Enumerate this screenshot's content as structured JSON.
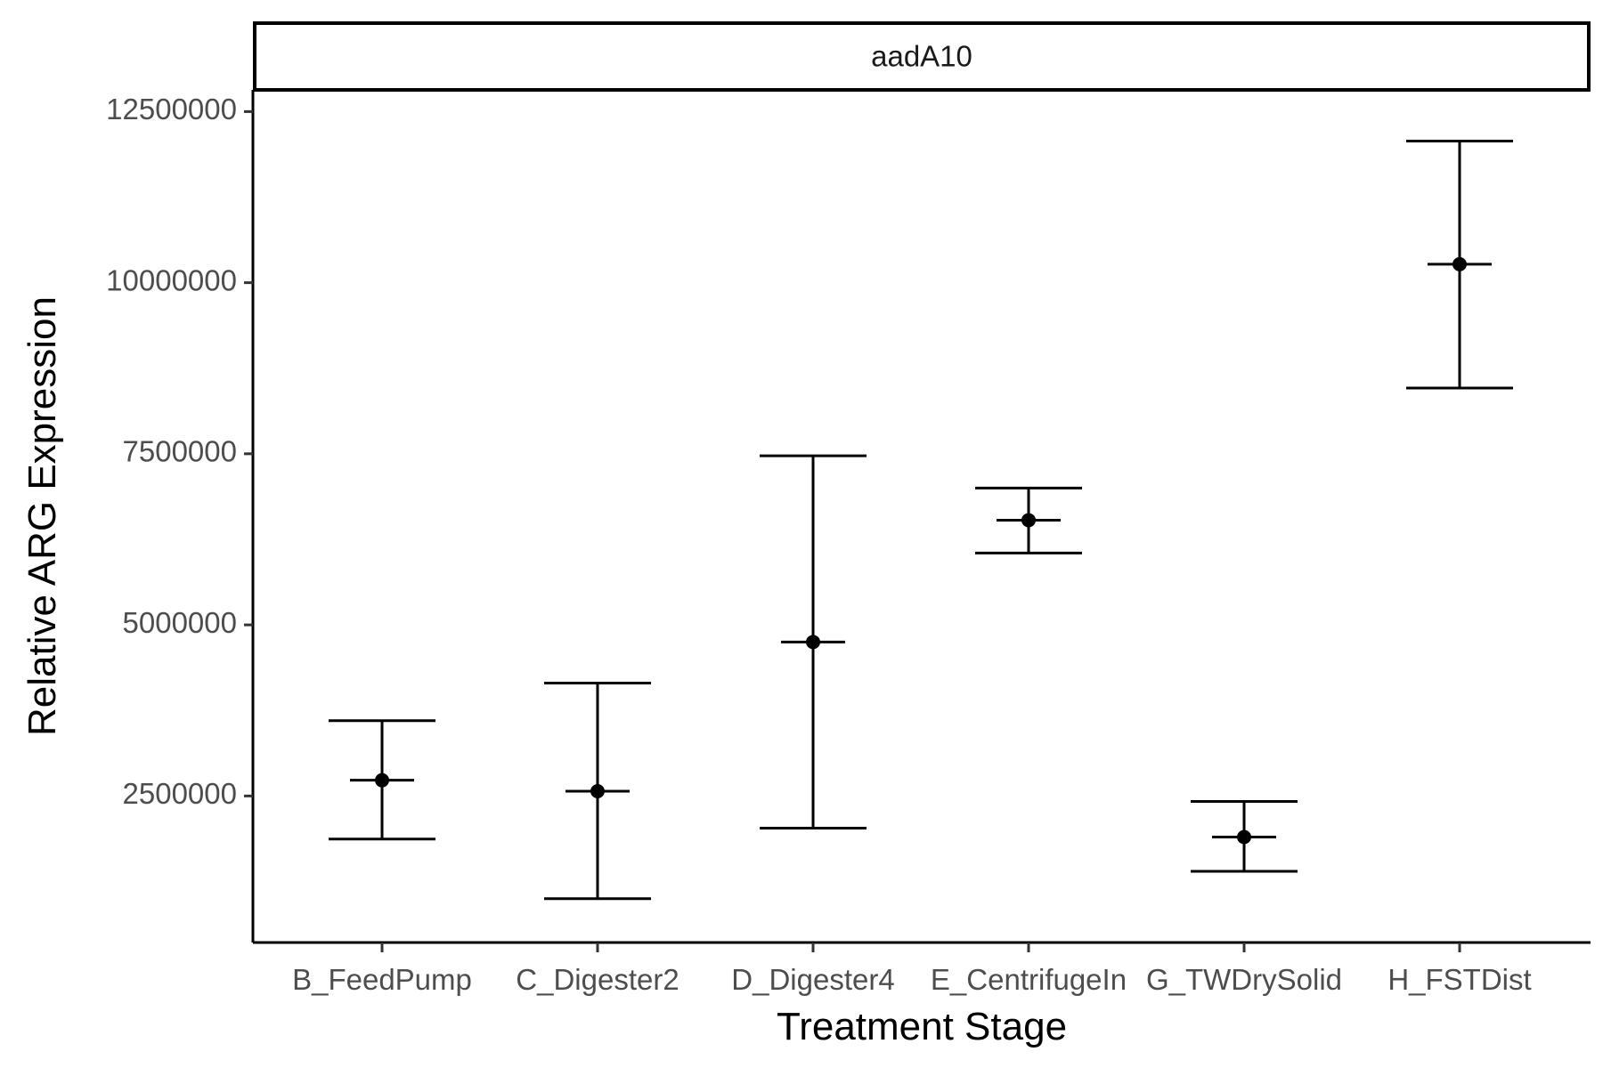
{
  "chart_data": {
    "type": "scatter",
    "panel_title": "aadA10",
    "xlabel": "Treatment Stage",
    "ylabel": "Relative ARG Expression",
    "categories": [
      "B_FeedPump",
      "C_Digester2",
      "D_Digester4",
      "E_CentrifugeIn",
      "G_TWDrySolid",
      "H_FSTDist"
    ],
    "y_ticks": [
      2500000,
      5000000,
      7500000,
      10000000,
      12500000
    ],
    "y_tick_labels": [
      "2500000",
      "5000000",
      "7500000",
      "10000000",
      "12500000"
    ],
    "ylim": [
      450000,
      12700000
    ],
    "points": [
      {
        "category": "B_FeedPump",
        "mean": 2730000,
        "lower": 1870000,
        "upper": 3600000
      },
      {
        "category": "C_Digester2",
        "mean": 2570000,
        "lower": 1000000,
        "upper": 4150000
      },
      {
        "category": "D_Digester4",
        "mean": 4750000,
        "lower": 2030000,
        "upper": 7470000
      },
      {
        "category": "E_CentrifugeIn",
        "mean": 6530000,
        "lower": 6050000,
        "upper": 7000000
      },
      {
        "category": "G_TWDrySolid",
        "mean": 1900000,
        "lower": 1400000,
        "upper": 2420000
      },
      {
        "category": "H_FSTDist",
        "mean": 10270000,
        "lower": 8460000,
        "upper": 12070000
      }
    ],
    "grid": false,
    "colors": {
      "marks": "#000000",
      "tick_labels": "#4d4d4d",
      "axis": "#000000",
      "strip_fill": "#ffffff"
    }
  }
}
